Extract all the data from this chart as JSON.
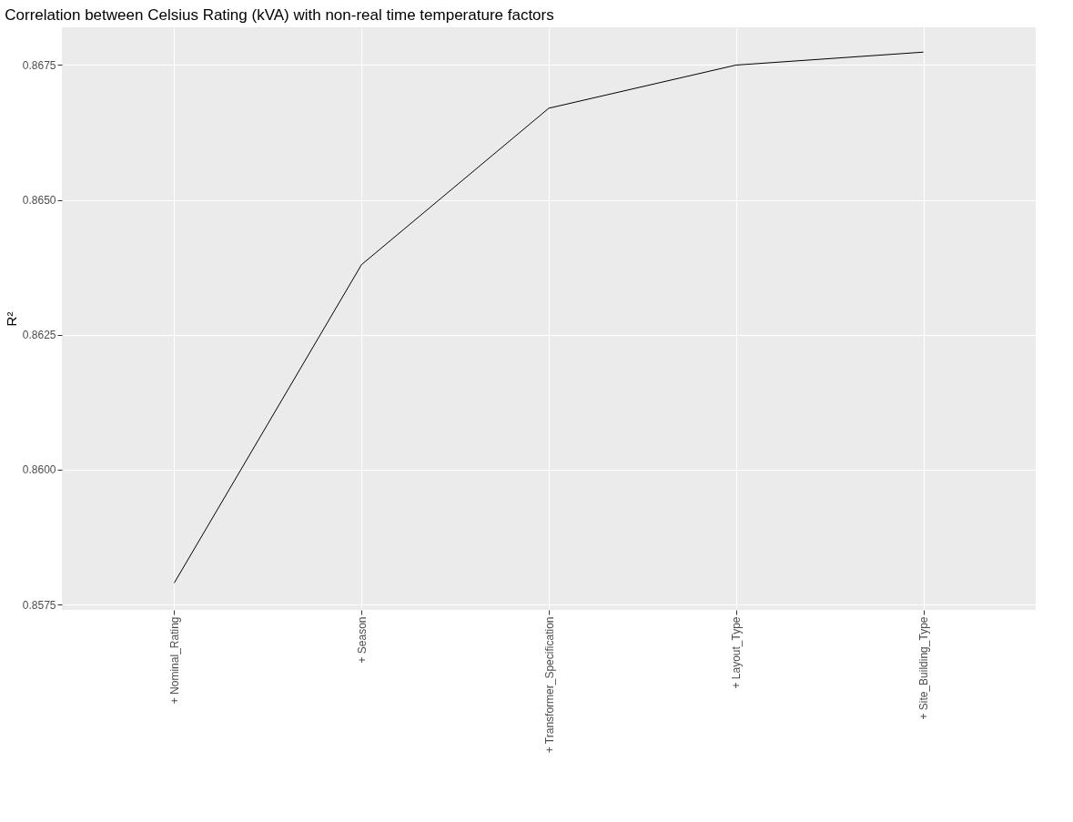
{
  "chart_data": {
    "type": "line",
    "title": "Correlation between Celsius Rating (kVA) with non-real time temperature factors",
    "ylabel": "R²",
    "categories": [
      "+ Nominal_Rating",
      "+ Season",
      "+ Transformer_Specification",
      "+ Layout_Type",
      "+ Site_Building_Type"
    ],
    "series": [
      {
        "color": "#000000",
        "values": [
          0.8579,
          0.8638,
          0.8667,
          0.8675,
          0.86774
        ]
      }
    ],
    "ylim": [
      0.8574,
      0.8682
    ],
    "yticks": [
      {
        "value": 0.8575,
        "label": "0.8575"
      },
      {
        "value": 0.86,
        "label": "0.8600"
      },
      {
        "value": 0.8625,
        "label": "0.8625"
      },
      {
        "value": 0.865,
        "label": "0.8650"
      },
      {
        "value": 0.8675,
        "label": "0.8675"
      }
    ],
    "grid": true,
    "marker": "none",
    "line_style": "solid"
  }
}
